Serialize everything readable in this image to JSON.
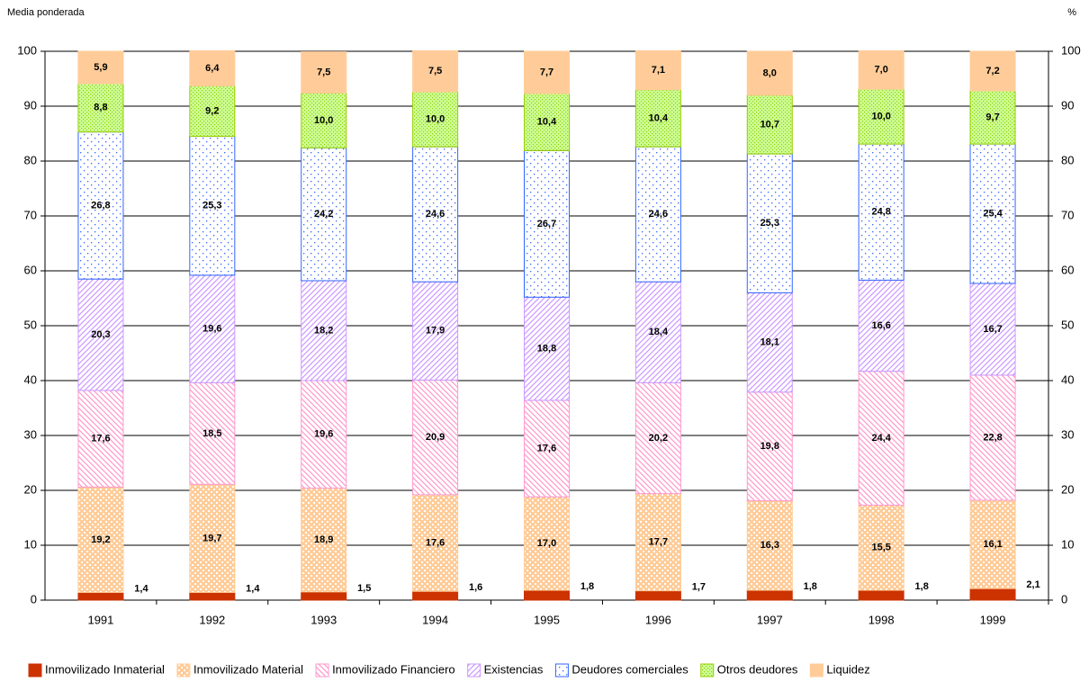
{
  "chart_data": {
    "type": "stacked_bar",
    "y_label": "Media ponderada",
    "y2_label": "%",
    "categories": [
      "1991",
      "1992",
      "1993",
      "1994",
      "1995",
      "1996",
      "1997",
      "1998",
      "1999"
    ],
    "ylim": [
      0,
      100
    ],
    "yticks": [
      0,
      10,
      20,
      30,
      40,
      50,
      60,
      70,
      80,
      90,
      100
    ],
    "y2lim": [
      0,
      100
    ],
    "y2ticks": [
      0,
      10,
      20,
      30,
      40,
      50,
      60,
      70,
      80,
      90,
      100
    ],
    "grid": true,
    "legend": "bottom",
    "series": [
      {
        "name": "Inmovilizado Inmaterial",
        "color": "#cc3300",
        "pattern": "solid",
        "values": [
          1.4,
          1.4,
          1.5,
          1.6,
          1.8,
          1.7,
          1.8,
          1.8,
          2.1
        ],
        "value_labels": [
          "1,4",
          "1,4",
          "1,5",
          "1,6",
          "1,8",
          "1,7",
          "1,8",
          "1,8",
          "2,1"
        ]
      },
      {
        "name": "Inmovilizado Material",
        "color": "#ffcc99",
        "pattern": "checker",
        "values": [
          19.2,
          19.7,
          18.9,
          17.6,
          17.0,
          17.7,
          16.3,
          15.5,
          16.1
        ],
        "value_labels": [
          "19,2",
          "19,7",
          "18,9",
          "17,6",
          "17,0",
          "17,7",
          "16,3",
          "15,5",
          "16,1"
        ]
      },
      {
        "name": "Inmovilizado Financiero",
        "color": "#ff99cc",
        "pattern": "diagdown",
        "values": [
          17.6,
          18.5,
          19.6,
          20.9,
          17.6,
          20.2,
          19.8,
          24.4,
          22.8
        ],
        "value_labels": [
          "17,6",
          "18,5",
          "19,6",
          "20,9",
          "17,6",
          "20,2",
          "19,8",
          "24,4",
          "22,8"
        ]
      },
      {
        "name": "Existencias",
        "color": "#cc99ff",
        "pattern": "diagup",
        "values": [
          20.3,
          19.6,
          18.2,
          17.9,
          18.8,
          18.4,
          18.1,
          16.6,
          16.7
        ],
        "value_labels": [
          "20,3",
          "19,6",
          "18,2",
          "17,9",
          "18,8",
          "18,4",
          "18,1",
          "16,6",
          "16,7"
        ]
      },
      {
        "name": "Deudores comerciales",
        "color": "#3366ff",
        "pattern": "dots",
        "values": [
          26.8,
          25.3,
          24.2,
          24.6,
          26.7,
          24.6,
          25.3,
          24.8,
          25.4
        ],
        "value_labels": [
          "26,8",
          "25,3",
          "24,2",
          "24,6",
          "26,7",
          "24,6",
          "25,3",
          "24,8",
          "25,4"
        ]
      },
      {
        "name": "Otros deudores",
        "color": "#99cc00",
        "pattern": "densedots",
        "values": [
          8.8,
          9.2,
          10.0,
          10.0,
          10.4,
          10.4,
          10.7,
          10.0,
          9.7
        ],
        "value_labels": [
          "8,8",
          "9,2",
          "10,0",
          "10,0",
          "10,4",
          "10,4",
          "10,7",
          "10,0",
          "9,7"
        ]
      },
      {
        "name": "Liquidez",
        "color": "#ffcc99",
        "pattern": "solid",
        "values": [
          5.9,
          6.4,
          7.5,
          7.5,
          7.7,
          7.1,
          8.0,
          7.0,
          7.2
        ],
        "value_labels": [
          "5,9",
          "6,4",
          "7,5",
          "7,5",
          "7,7",
          "7,1",
          "8,0",
          "7,0",
          "7,2"
        ]
      }
    ]
  }
}
